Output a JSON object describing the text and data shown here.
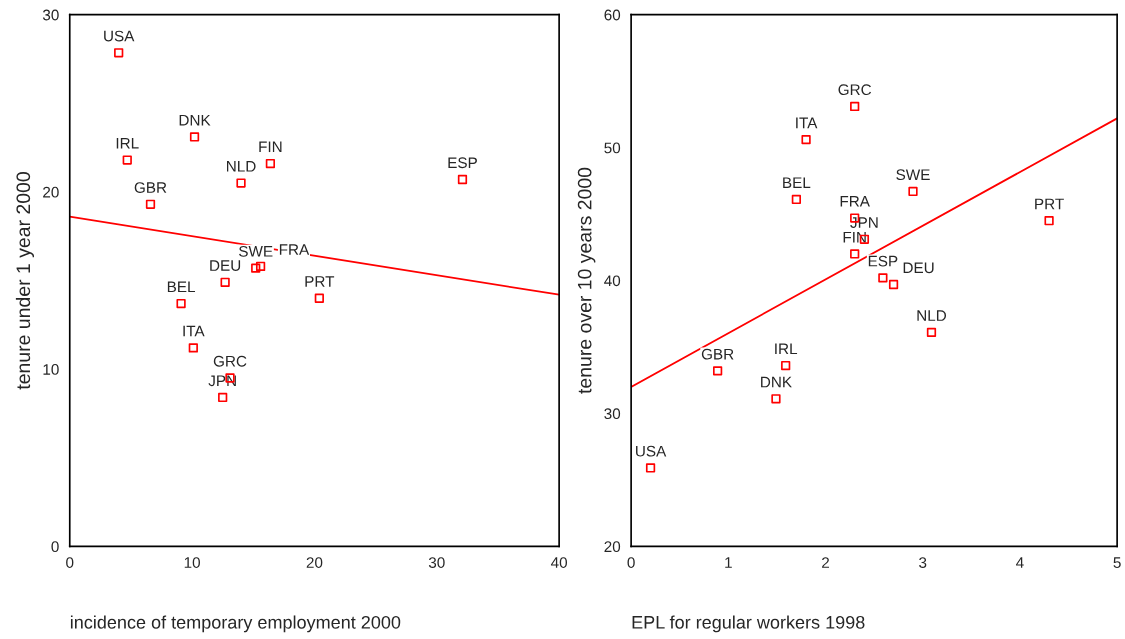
{
  "chart_data": [
    {
      "type": "scatter",
      "xlabel": "incidence of temporary employment 2000",
      "ylabel": "tenure under 1 year 2000",
      "xlim": [
        0,
        40
      ],
      "ylim": [
        0,
        30
      ],
      "xticks": [
        0,
        10,
        20,
        30,
        40
      ],
      "yticks": [
        0,
        10,
        20,
        30
      ],
      "grid": false,
      "series": [
        {
          "color": "#ff0000",
          "marker": "square",
          "x": [
            4.0,
            4.7,
            10.2,
            6.6,
            14.0,
            16.4,
            32.1,
            15.2,
            15.6,
            12.7,
            9.1,
            20.4,
            10.1,
            13.1,
            12.5
          ],
          "values": [
            27.85,
            21.8,
            23.1,
            19.3,
            20.5,
            21.6,
            20.7,
            15.7,
            15.8,
            14.9,
            13.7,
            14.0,
            11.2,
            9.5,
            8.4
          ]
        },
        {
          "type": "line",
          "color": "#ff0000",
          "x": [
            0,
            40
          ],
          "values": [
            18.6,
            14.2
          ]
        }
      ],
      "annotations": [
        {
          "text": "USA",
          "x": 4.0,
          "y": 27.85
        },
        {
          "text": "IRL",
          "x": 4.7,
          "y": 21.8
        },
        {
          "text": "DNK",
          "x": 10.2,
          "y": 23.1
        },
        {
          "text": "GBR",
          "x": 6.6,
          "y": 19.3
        },
        {
          "text": "NLD",
          "x": 14.0,
          "y": 20.5
        },
        {
          "text": "FIN",
          "x": 16.4,
          "y": 21.6
        },
        {
          "text": "ESP",
          "x": 32.1,
          "y": 20.7
        },
        {
          "text": "SWE",
          "x": 15.2,
          "y": 15.7
        },
        {
          "text": "FRA",
          "x": 15.6,
          "y": 15.8
        },
        {
          "text": "DEU",
          "x": 12.7,
          "y": 14.9
        },
        {
          "text": "BEL",
          "x": 9.1,
          "y": 13.7
        },
        {
          "text": "PRT",
          "x": 20.4,
          "y": 14.0
        },
        {
          "text": "ITA",
          "x": 10.1,
          "y": 11.2
        },
        {
          "text": "GRC",
          "x": 13.1,
          "y": 9.5
        },
        {
          "text": "JPN",
          "x": 12.5,
          "y": 8.4
        }
      ]
    },
    {
      "type": "scatter",
      "xlabel": "EPL for regular workers 1998",
      "ylabel": "tenure over 10 years 2000",
      "xlim": [
        0,
        5
      ],
      "ylim": [
        20,
        60
      ],
      "xticks": [
        0,
        1,
        2,
        3,
        4,
        5
      ],
      "yticks": [
        20,
        30,
        40,
        50,
        60
      ],
      "grid": false,
      "series": [
        {
          "color": "#ff0000",
          "marker": "square",
          "x": [
            2.3,
            1.8,
            1.7,
            2.9,
            2.3,
            4.3,
            2.4,
            2.3,
            2.59,
            2.7,
            3.09,
            1.59,
            0.89,
            1.49,
            0.2
          ],
          "values": [
            53.1,
            50.6,
            46.1,
            46.7,
            44.7,
            44.5,
            43.1,
            42.0,
            40.2,
            39.7,
            36.1,
            33.6,
            33.2,
            31.1,
            25.9
          ]
        },
        {
          "type": "line",
          "color": "#ff0000",
          "x": [
            0,
            5
          ],
          "values": [
            32.0,
            52.2
          ]
        }
      ],
      "annotations": [
        {
          "text": "GRC",
          "x": 2.3,
          "y": 53.1
        },
        {
          "text": "ITA",
          "x": 1.8,
          "y": 50.6
        },
        {
          "text": "BEL",
          "x": 1.7,
          "y": 46.1
        },
        {
          "text": "SWE",
          "x": 2.9,
          "y": 46.7
        },
        {
          "text": "FRA",
          "x": 2.3,
          "y": 44.7
        },
        {
          "text": "PRT",
          "x": 4.3,
          "y": 44.5
        },
        {
          "text": "JPN",
          "x": 2.4,
          "y": 43.1
        },
        {
          "text": "FIN",
          "x": 2.3,
          "y": 42.0
        },
        {
          "text": "ESP",
          "x": 2.59,
          "y": 40.2
        },
        {
          "text": "DEU",
          "x": 2.7,
          "y": 39.7
        },
        {
          "text": "NLD",
          "x": 3.09,
          "y": 36.1
        },
        {
          "text": "IRL",
          "x": 1.59,
          "y": 33.6
        },
        {
          "text": "GBR",
          "x": 0.89,
          "y": 33.2
        },
        {
          "text": "DNK",
          "x": 1.49,
          "y": 31.1
        },
        {
          "text": "USA",
          "x": 0.2,
          "y": 25.9
        }
      ]
    }
  ]
}
